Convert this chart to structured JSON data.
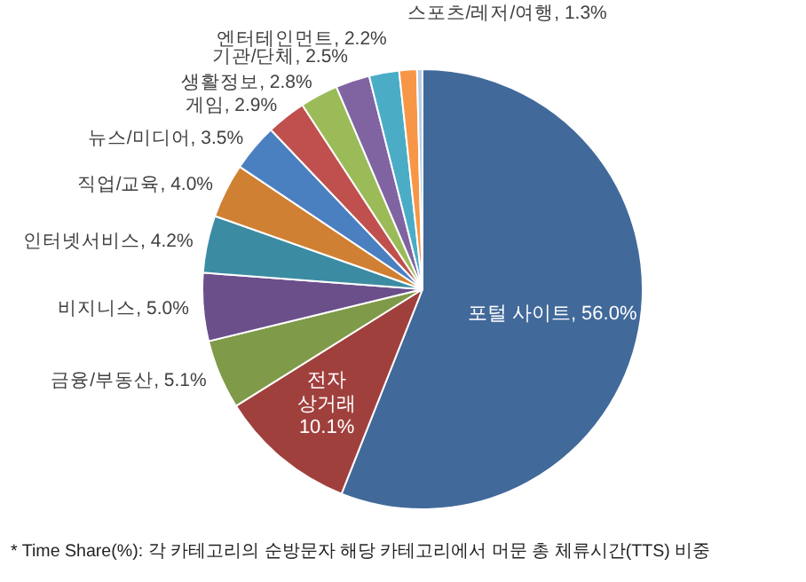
{
  "chart_data": {
    "type": "pie",
    "categories": [
      "포털 사이트",
      "전자 상거래",
      "금융/부동산",
      "비지니스",
      "인터넷서비스",
      "직업/교육",
      "뉴스/미디어",
      "게임",
      "생활정보",
      "기관/단체",
      "엔터테인먼트",
      "스포츠/레저/여행",
      null
    ],
    "values": [
      56.0,
      10.1,
      5.1,
      5.0,
      4.2,
      4.0,
      3.5,
      2.9,
      2.8,
      2.5,
      2.2,
      1.3,
      0.4
    ],
    "value_labels": [
      "56.0%",
      "10.1%",
      "5.1%",
      "5.0%",
      "4.2%",
      "4.0%",
      "3.5%",
      "2.9%",
      "2.8%",
      "2.5%",
      "2.2%",
      "1.3%",
      null
    ],
    "colors": [
      "#41699a",
      "#a0403d",
      "#7f9a48",
      "#6a4f8a",
      "#3b8ca3",
      "#d08032",
      "#4a7fc0",
      "#c0504d",
      "#9bbb59",
      "#8064a2",
      "#4bacc6",
      "#f79646",
      "#b9cde5"
    ],
    "annotations": [
      "* Time Share(%): 각 카테고리의 순방문자 해당 카테고리에서 머문 총 체류시간(TTS) 비중"
    ]
  }
}
